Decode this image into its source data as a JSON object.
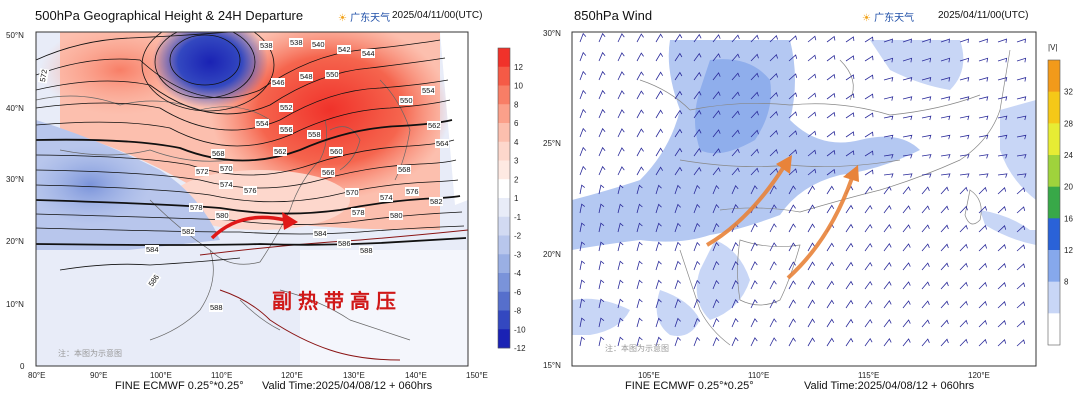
{
  "left": {
    "title": "500hPa Geographical Height & 24H Departure",
    "brand": "广东天气",
    "init_time": "2025/04/11/00(UTC)",
    "model": "FINE ECMWF 0.25°*0.25°",
    "valid": "Valid Time:2025/04/08/12 + 060hrs",
    "annotation": "副热带高压",
    "note": "注：本图为示意图",
    "lat_ticks": [
      "50°N",
      "40°N",
      "30°N",
      "20°N",
      "10°N",
      "0"
    ],
    "lon_ticks": [
      "80°E",
      "90°E",
      "100°E",
      "110°E",
      "120°E",
      "130°E",
      "140°E",
      "150°E"
    ],
    "colorbar": {
      "levels": [
        "12",
        "10",
        "8",
        "6",
        "4",
        "3",
        "2",
        "1",
        "-1",
        "-2",
        "-3",
        "-4",
        "-6",
        "-8",
        "-10",
        "-12"
      ],
      "colors": [
        "#f0322a",
        "#f55a46",
        "#f87e66",
        "#fba08a",
        "#fcbfae",
        "#fdd7cc",
        "#fee9e2",
        "#ffffff",
        "#e8ecf8",
        "#d2daf2",
        "#b8c6ec",
        "#9aafe4",
        "#7a93da",
        "#566fcc",
        "#3348c0",
        "#1a22b4"
      ]
    },
    "contours": [
      "538",
      "538",
      "540",
      "542",
      "544",
      "546",
      "548",
      "550",
      "550",
      "552",
      "554",
      "554",
      "556",
      "558",
      "560",
      "562",
      "562",
      "564",
      "566",
      "568",
      "568",
      "570",
      "570",
      "572",
      "572",
      "574",
      "574",
      "576",
      "576",
      "578",
      "578",
      "580",
      "580",
      "582",
      "582",
      "584",
      "584",
      "586",
      "586",
      "588",
      "588"
    ]
  },
  "right": {
    "title": "850hPa Wind",
    "brand": "广东天气",
    "init_time": "2025/04/11/00(UTC)",
    "model": "FINE ECMWF 0.25°*0.25°",
    "valid": "Valid Time:2025/04/08/12 + 060hrs",
    "note": "注：本图为示意图",
    "lat_ticks": [
      "30°N",
      "25°N",
      "20°N",
      "15°N"
    ],
    "lon_ticks": [
      "105°E",
      "110°E",
      "115°E",
      "120°E"
    ],
    "colorbar": {
      "unit": "|V|",
      "levels": [
        "32",
        "28",
        "24",
        "20",
        "16",
        "12",
        "8"
      ],
      "colors": [
        "#f29a1a",
        "#f5c818",
        "#e7ec34",
        "#9fd33c",
        "#38a848",
        "#2a62d8",
        "#86a8ec",
        "#c8d6f6",
        "#ffffff"
      ]
    }
  }
}
